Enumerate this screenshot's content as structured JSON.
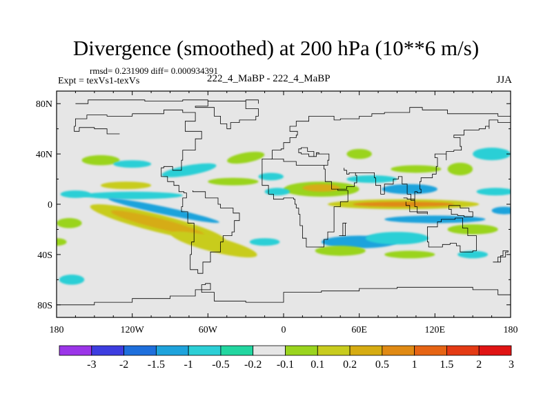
{
  "title": "Divergence (smoothed) at 200 hPa (10**6 m/s)",
  "stats": "rmsd= 0.231909 diff= 0.000934391",
  "expt": "Expt = texVs1-texVs",
  "center": "222_4_MaBP - 222_4_MaBP",
  "season": "JJA",
  "chart_data": {
    "type": "heatmap",
    "title": "Divergence (smoothed) at 200 hPa (10**6 m/s)",
    "variable": "Divergence (smoothed)",
    "level": "200 hPa",
    "units": "10**6 m/s",
    "season": "JJA",
    "xlabel": "",
    "ylabel": "",
    "xlim": [
      -180,
      180
    ],
    "ylim": [
      -90,
      90
    ],
    "x_ticks": [
      {
        "value": -180,
        "label": "180"
      },
      {
        "value": -120,
        "label": "120W"
      },
      {
        "value": -60,
        "label": "60W"
      },
      {
        "value": 0,
        "label": "0"
      },
      {
        "value": 60,
        "label": "60E"
      },
      {
        "value": 120,
        "label": "120E"
      },
      {
        "value": 180,
        "label": "180"
      }
    ],
    "y_ticks": [
      {
        "value": 80,
        "label": "80N"
      },
      {
        "value": 40,
        "label": "40N"
      },
      {
        "value": 0,
        "label": "0"
      },
      {
        "value": -40,
        "label": "40S"
      },
      {
        "value": -80,
        "label": "80S"
      }
    ],
    "colorbar": {
      "levels": [
        "-3",
        "-2",
        "-1.5",
        "-1",
        "-0.5",
        "-0.2",
        "-0.1",
        "0.1",
        "0.2",
        "0.5",
        "1",
        "1.5",
        "2",
        "3"
      ],
      "colors": [
        "#9b35e8",
        "#3d3de0",
        "#1e6fdc",
        "#1ea3dc",
        "#2ccfd6",
        "#22d6a0",
        "#e6e6e6",
        "#9ad41e",
        "#c8cc1e",
        "#d6ac12",
        "#e08a14",
        "#e66414",
        "#e43a14",
        "#e01414"
      ]
    },
    "background_color": "#e6e6e6",
    "features": [
      {
        "lon": -100,
        "lat": -15,
        "rx": 55,
        "ry": 7,
        "rot": 14,
        "color": "#c8cc1e"
      },
      {
        "lon": -100,
        "lat": -15,
        "rx": 38,
        "ry": 4,
        "rot": 14,
        "color": "#d6ac12"
      },
      {
        "lon": -55,
        "lat": -32,
        "rx": 35,
        "ry": 6,
        "rot": 14,
        "color": "#c8cc1e"
      },
      {
        "lon": -120,
        "lat": 7,
        "rx": 40,
        "ry": 3,
        "rot": 0,
        "color": "#2ccfd6"
      },
      {
        "lon": -95,
        "lat": -5,
        "rx": 45,
        "ry": 3,
        "rot": 12,
        "color": "#1ea3dc"
      },
      {
        "lon": -125,
        "lat": 15,
        "rx": 20,
        "ry": 3,
        "rot": 0,
        "color": "#c8cc1e"
      },
      {
        "lon": -75,
        "lat": 27,
        "rx": 22,
        "ry": 4,
        "rot": -10,
        "color": "#2ccfd6"
      },
      {
        "lon": -145,
        "lat": 35,
        "rx": 15,
        "ry": 4,
        "rot": 0,
        "color": "#9ad41e"
      },
      {
        "lon": -120,
        "lat": 32,
        "rx": 15,
        "ry": 3,
        "rot": 0,
        "color": "#2ccfd6"
      },
      {
        "lon": -30,
        "lat": 37,
        "rx": 15,
        "ry": 4,
        "rot": -10,
        "color": "#9ad41e"
      },
      {
        "lon": -40,
        "lat": 18,
        "rx": 20,
        "ry": 3,
        "rot": 0,
        "color": "#9ad41e"
      },
      {
        "lon": -10,
        "lat": 22,
        "rx": 10,
        "ry": 3,
        "rot": 0,
        "color": "#2ccfd6"
      },
      {
        "lon": -165,
        "lat": 8,
        "rx": 12,
        "ry": 3,
        "rot": 0,
        "color": "#2ccfd6"
      },
      {
        "lon": -170,
        "lat": -15,
        "rx": 10,
        "ry": 4,
        "rot": 0,
        "color": "#9ad41e"
      },
      {
        "lon": 30,
        "lat": 12,
        "rx": 30,
        "ry": 6,
        "rot": 0,
        "color": "#9ad41e"
      },
      {
        "lon": 30,
        "lat": 13,
        "rx": 15,
        "ry": 3,
        "rot": 0,
        "color": "#d6ac12"
      },
      {
        "lon": -5,
        "lat": 10,
        "rx": 10,
        "ry": 3,
        "rot": 0,
        "color": "#2ccfd6"
      },
      {
        "lon": 70,
        "lat": 20,
        "rx": 20,
        "ry": 3,
        "rot": 0,
        "color": "#2ccfd6"
      },
      {
        "lon": 100,
        "lat": 12,
        "rx": 22,
        "ry": 4,
        "rot": 0,
        "color": "#1ea3dc"
      },
      {
        "lon": 105,
        "lat": 28,
        "rx": 20,
        "ry": 3,
        "rot": 0,
        "color": "#9ad41e"
      },
      {
        "lon": 95,
        "lat": 0,
        "rx": 60,
        "ry": 4,
        "rot": 0,
        "color": "#c8cc1e"
      },
      {
        "lon": 95,
        "lat": 0,
        "rx": 40,
        "ry": 2,
        "rot": 0,
        "color": "#e08a14"
      },
      {
        "lon": 120,
        "lat": -12,
        "rx": 40,
        "ry": 3,
        "rot": 0,
        "color": "#1ea3dc"
      },
      {
        "lon": 60,
        "lat": -30,
        "rx": 30,
        "ry": 5,
        "rot": 0,
        "color": "#1ea3dc"
      },
      {
        "lon": 90,
        "lat": -27,
        "rx": 25,
        "ry": 5,
        "rot": 0,
        "color": "#2ccfd6"
      },
      {
        "lon": 45,
        "lat": -37,
        "rx": 20,
        "ry": 4,
        "rot": 0,
        "color": "#9ad41e"
      },
      {
        "lon": 100,
        "lat": -40,
        "rx": 20,
        "ry": 3,
        "rot": 0,
        "color": "#9ad41e"
      },
      {
        "lon": 150,
        "lat": -20,
        "rx": 20,
        "ry": 4,
        "rot": 0,
        "color": "#9ad41e"
      },
      {
        "lon": 150,
        "lat": -40,
        "rx": 12,
        "ry": 3,
        "rot": 0,
        "color": "#2ccfd6"
      },
      {
        "lon": 165,
        "lat": 40,
        "rx": 15,
        "ry": 5,
        "rot": 0,
        "color": "#2ccfd6"
      },
      {
        "lon": 140,
        "lat": 28,
        "rx": 10,
        "ry": 5,
        "rot": 0,
        "color": "#9ad41e"
      },
      {
        "lon": 168,
        "lat": 10,
        "rx": 15,
        "ry": 3,
        "rot": 0,
        "color": "#2ccfd6"
      },
      {
        "lon": 60,
        "lat": 40,
        "rx": 10,
        "ry": 4,
        "rot": 0,
        "color": "#9ad41e"
      },
      {
        "lon": -168,
        "lat": -60,
        "rx": 10,
        "ry": 4,
        "rot": 0,
        "color": "#2ccfd6"
      },
      {
        "lon": -180,
        "lat": -30,
        "rx": 8,
        "ry": 3,
        "rot": 0,
        "color": "#9ad41e"
      },
      {
        "lon": 175,
        "lat": -5,
        "rx": 10,
        "ry": 3,
        "rot": 0,
        "color": "#1ea3dc"
      },
      {
        "lon": -15,
        "lat": -30,
        "rx": 12,
        "ry": 3,
        "rot": 0,
        "color": "#2ccfd6"
      }
    ],
    "coastline_polylines": [
      [
        [
          -165,
          80
        ],
        [
          -155,
          83
        ],
        [
          -130,
          83
        ],
        [
          -110,
          82
        ],
        [
          -80,
          83
        ],
        [
          -60,
          82
        ],
        [
          -30,
          83
        ],
        [
          -20,
          80
        ]
      ],
      [
        [
          -120,
          72
        ],
        [
          -95,
          75
        ],
        [
          -80,
          73
        ],
        [
          -70,
          66
        ],
        [
          -78,
          58
        ],
        [
          -65,
          52
        ],
        [
          -70,
          43
        ],
        [
          -80,
          35
        ],
        [
          -81,
          27
        ],
        [
          -88,
          30
        ],
        [
          -95,
          29
        ],
        [
          -97,
          22
        ],
        [
          -92,
          18
        ],
        [
          -87,
          15
        ],
        [
          -83,
          10
        ],
        [
          -79,
          9
        ],
        [
          -77,
          5
        ],
        [
          -80,
          -2
        ],
        [
          -81,
          -6
        ],
        [
          -76,
          -15
        ],
        [
          -71,
          -18
        ],
        [
          -71,
          -30
        ],
        [
          -73,
          -40
        ],
        [
          -74,
          -52
        ],
        [
          -68,
          -55
        ],
        [
          -64,
          -46
        ],
        [
          -58,
          -38
        ],
        [
          -50,
          -30
        ],
        [
          -48,
          -25
        ],
        [
          -41,
          -22
        ],
        [
          -39,
          -13
        ],
        [
          -35,
          -7
        ],
        [
          -40,
          -3
        ],
        [
          -50,
          0
        ],
        [
          -52,
          5
        ],
        [
          -62,
          10
        ],
        [
          -72,
          11
        ]
      ],
      [
        [
          -130,
          56
        ],
        [
          -140,
          60
        ],
        [
          -150,
          61
        ],
        [
          -162,
          58
        ],
        [
          -166,
          62
        ],
        [
          -165,
          68
        ],
        [
          -156,
          71
        ],
        [
          -140,
          70
        ],
        [
          -128,
          70
        ],
        [
          -120,
          72
        ]
      ],
      [
        [
          -45,
          60
        ],
        [
          -42,
          65
        ],
        [
          -35,
          67
        ],
        [
          -22,
          70
        ],
        [
          -20,
          76
        ],
        [
          -30,
          82
        ],
        [
          -50,
          82
        ],
        [
          -60,
          78
        ],
        [
          -70,
          77
        ],
        [
          -55,
          70
        ],
        [
          -50,
          64
        ],
        [
          -45,
          60
        ]
      ],
      [
        [
          -10,
          36
        ],
        [
          -9,
          43
        ],
        [
          -2,
          44
        ],
        [
          0,
          49
        ],
        [
          5,
          53
        ],
        [
          10,
          55
        ],
        [
          11,
          58
        ],
        [
          5,
          62
        ],
        [
          10,
          66
        ],
        [
          20,
          70
        ],
        [
          30,
          70
        ],
        [
          40,
          67
        ],
        [
          45,
          68
        ],
        [
          60,
          70
        ],
        [
          70,
          72
        ],
        [
          80,
          73
        ],
        [
          100,
          77
        ],
        [
          110,
          75
        ],
        [
          130,
          72
        ],
        [
          150,
          72
        ],
        [
          170,
          70
        ],
        [
          180,
          68
        ]
      ],
      [
        [
          -10,
          36
        ],
        [
          -17,
          21
        ],
        [
          -17,
          15
        ],
        [
          -12,
          8
        ],
        [
          -8,
          4
        ],
        [
          0,
          5
        ],
        [
          8,
          4
        ],
        [
          9,
          0
        ],
        [
          10,
          -3
        ],
        [
          12,
          -8
        ],
        [
          13,
          -17
        ],
        [
          15,
          -27
        ],
        [
          18,
          -34
        ],
        [
          25,
          -34
        ],
        [
          32,
          -28
        ],
        [
          35,
          -22
        ],
        [
          40,
          -15
        ],
        [
          40,
          -8
        ],
        [
          40,
          -2
        ],
        [
          45,
          2
        ],
        [
          51,
          11
        ],
        [
          43,
          12
        ],
        [
          38,
          18
        ],
        [
          33,
          28
        ],
        [
          32,
          31
        ],
        [
          20,
          31
        ],
        [
          10,
          34
        ],
        [
          0,
          36
        ],
        [
          -10,
          36
        ]
      ],
      [
        [
          32,
          31
        ],
        [
          35,
          35
        ],
        [
          36,
          40
        ],
        [
          28,
          41
        ],
        [
          26,
          38
        ],
        [
          22,
          38
        ],
        [
          20,
          40
        ],
        [
          14,
          41
        ],
        [
          12,
          44
        ],
        [
          14,
          45
        ],
        [
          19,
          42
        ],
        [
          24,
          38
        ],
        [
          26,
          40
        ],
        [
          28,
          41
        ]
      ],
      [
        [
          43,
          12
        ],
        [
          50,
          14
        ],
        [
          56,
          17
        ],
        [
          58,
          23
        ],
        [
          57,
          25
        ],
        [
          52,
          24
        ],
        [
          50,
          27
        ],
        [
          48,
          29
        ]
      ],
      [
        [
          57,
          25
        ],
        [
          67,
          25
        ],
        [
          72,
          21
        ],
        [
          73,
          15
        ],
        [
          77,
          8
        ],
        [
          80,
          12
        ],
        [
          80,
          16
        ],
        [
          87,
          20
        ],
        [
          91,
          22
        ],
        [
          94,
          16
        ],
        [
          98,
          16
        ],
        [
          98,
          8
        ],
        [
          101,
          3
        ],
        [
          104,
          1
        ],
        [
          104,
          10
        ],
        [
          106,
          9
        ],
        [
          109,
          12
        ],
        [
          108,
          18
        ],
        [
          109,
          21
        ],
        [
          118,
          24
        ],
        [
          121,
          30
        ],
        [
          122,
          37
        ],
        [
          120,
          40
        ],
        [
          125,
          40
        ],
        [
          129,
          35
        ],
        [
          129,
          42
        ],
        [
          135,
          43
        ],
        [
          141,
          46
        ],
        [
          140,
          53
        ],
        [
          135,
          55
        ],
        [
          143,
          59
        ],
        [
          155,
          60
        ],
        [
          160,
          62
        ],
        [
          163,
          60
        ],
        [
          163,
          67
        ],
        [
          170,
          65
        ],
        [
          180,
          65
        ]
      ],
      [
        [
          114,
          -22
        ],
        [
          114,
          -30
        ],
        [
          115,
          -34
        ],
        [
          120,
          -34
        ],
        [
          126,
          -32
        ],
        [
          132,
          -31
        ],
        [
          137,
          -33
        ],
        [
          140,
          -38
        ],
        [
          145,
          -38
        ],
        [
          150,
          -37
        ],
        [
          153,
          -31
        ],
        [
          153,
          -25
        ],
        [
          146,
          -19
        ],
        [
          142,
          -11
        ],
        [
          136,
          -12
        ],
        [
          130,
          -12
        ],
        [
          125,
          -14
        ],
        [
          122,
          -18
        ],
        [
          114,
          -22
        ]
      ],
      [
        [
          95,
          5
        ],
        [
          98,
          4
        ],
        [
          104,
          -2
        ],
        [
          106,
          -6
        ],
        [
          100,
          -1
        ],
        [
          97,
          2
        ]
      ],
      [
        [
          106,
          -6
        ],
        [
          114,
          -8
        ],
        [
          114,
          -7
        ],
        [
          106,
          -6
        ]
      ],
      [
        [
          131,
          -1
        ],
        [
          140,
          -3
        ],
        [
          147,
          -6
        ],
        [
          150,
          -10
        ],
        [
          143,
          -9
        ],
        [
          138,
          -8
        ],
        [
          133,
          -4
        ],
        [
          131,
          -1
        ]
      ],
      [
        [
          44,
          -25
        ],
        [
          49,
          -15
        ],
        [
          50,
          -15
        ],
        [
          47,
          -25
        ],
        [
          44,
          -25
        ]
      ],
      [
        [
          166,
          -46
        ],
        [
          172,
          -41
        ],
        [
          174,
          -37
        ],
        [
          178,
          -38
        ],
        [
          176,
          -42
        ],
        [
          170,
          -46
        ],
        [
          166,
          -46
        ]
      ],
      [
        [
          -180,
          -80
        ],
        [
          -150,
          -78
        ],
        [
          -120,
          -75
        ],
        [
          -90,
          -73
        ],
        [
          -70,
          -68
        ],
        [
          -58,
          -63
        ],
        [
          -62,
          -64
        ],
        [
          -65,
          -70
        ],
        [
          -55,
          -77
        ],
        [
          -30,
          -78
        ],
        [
          0,
          -70
        ],
        [
          30,
          -69
        ],
        [
          60,
          -67
        ],
        [
          90,
          -66
        ],
        [
          120,
          -66
        ],
        [
          150,
          -68
        ],
        [
          170,
          -72
        ],
        [
          180,
          -78
        ]
      ]
    ]
  }
}
